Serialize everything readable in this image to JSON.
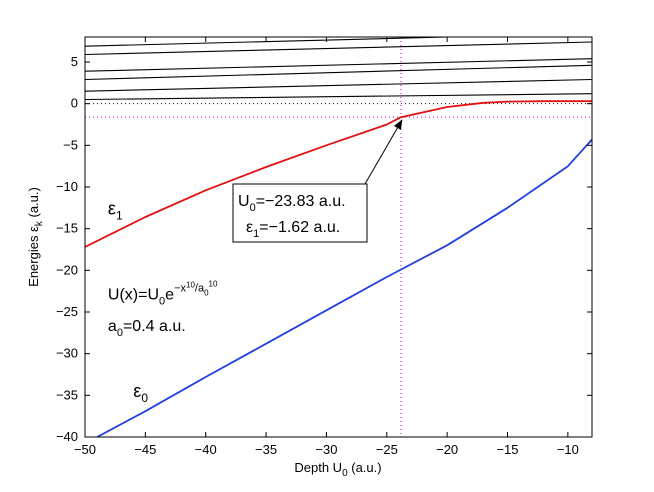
{
  "chart_data": {
    "type": "line",
    "xlabel": {
      "main": "Depth U",
      "sub": "0",
      "tail": " (a.u.)"
    },
    "ylabel": {
      "main": "Energies ε",
      "sub": "k",
      "tail": " (a.u.)"
    },
    "xlim": [
      -50,
      -8
    ],
    "ylim": [
      -40,
      8
    ],
    "xticks": [
      -50,
      -45,
      -40,
      -35,
      -30,
      -25,
      -20,
      -15,
      -10
    ],
    "xtick_labels": [
      "−50",
      "−45",
      "−40",
      "−35",
      "−30",
      "−25",
      "−20",
      "−15",
      "−10"
    ],
    "yticks": [
      -40,
      -35,
      -30,
      -25,
      -20,
      -15,
      -10,
      -5,
      0,
      5
    ],
    "ytick_labels": [
      "−40",
      "−35",
      "−30",
      "−25",
      "−20",
      "−15",
      "−10",
      "−5",
      "0",
      "5"
    ],
    "grid": false,
    "colors": {
      "epsilon_0": "#1f3fe0",
      "epsilon_1": "#e01010",
      "higher": "#000000",
      "guide": "#c000c0"
    },
    "series": [
      {
        "name": "ε0",
        "color": "#1f3fe0",
        "x": [
          -49,
          -45,
          -40,
          -35,
          -30,
          -25,
          -20,
          -15,
          -10,
          -8
        ],
        "y": [
          -40,
          -36.9,
          -32.8,
          -28.8,
          -24.8,
          -20.8,
          -17,
          -12.5,
          -7.5,
          -4.3
        ]
      },
      {
        "name": "ε1",
        "color": "#e01010",
        "x": [
          -50,
          -45,
          -40,
          -35,
          -30,
          -25,
          -23.83,
          -20,
          -17,
          -15,
          -12,
          -8
        ],
        "y": [
          -17.2,
          -13.6,
          -10.4,
          -7.6,
          -5,
          -2.5,
          -1.62,
          -0.4,
          0.1,
          0.25,
          0.3,
          0.3
        ]
      },
      {
        "name": "",
        "color": "#000000",
        "x": [
          -50,
          -8
        ],
        "y": [
          0.5,
          1.2
        ]
      },
      {
        "name": "",
        "color": "#000000",
        "x": [
          -50,
          -8
        ],
        "y": [
          1.5,
          2.9
        ]
      },
      {
        "name": "",
        "color": "#000000",
        "x": [
          -50,
          -8
        ],
        "y": [
          2.9,
          4.6
        ]
      },
      {
        "name": "",
        "color": "#000000",
        "x": [
          -50,
          -8
        ],
        "y": [
          3.9,
          5.4
        ]
      },
      {
        "name": "",
        "color": "#000000",
        "x": [
          -50,
          -8
        ],
        "y": [
          5.9,
          7.4
        ]
      },
      {
        "name": "",
        "color": "#000000",
        "x": [
          -50,
          -20
        ],
        "y": [
          6.9,
          8
        ]
      }
    ],
    "guides": {
      "hline_y": 0,
      "marker_hline_y": -1.62,
      "marker_vline_x": -23.83
    },
    "marker_point": {
      "x": -23.83,
      "y": -1.62
    },
    "annotations": {
      "eps1_label": {
        "main": "ε",
        "sub": "1",
        "x": -48.1,
        "y": -13.3
      },
      "eps0_label": {
        "main": "ε",
        "sub": "0",
        "x": -46,
        "y": -35.2
      },
      "potential": {
        "text": "U(x)=U",
        "sub0": "0",
        "e": "e",
        "sup": "−x",
        "sup10": "10",
        "slash": "/a",
        "sub2": "0",
        "sup10b": "10",
        "x": -48.1,
        "y": -23.5
      },
      "a0": {
        "main": "a",
        "sub": "0",
        "tail": "=0.4 a.u.",
        "x": -48.1,
        "y": -27.3
      },
      "box_line1": {
        "main": "U",
        "sub": "0",
        "tail": "=−23.83 a.u."
      },
      "box_line2": {
        "main": "ε",
        "sub": "1",
        "tail": "=−1.62 a.u."
      }
    }
  }
}
